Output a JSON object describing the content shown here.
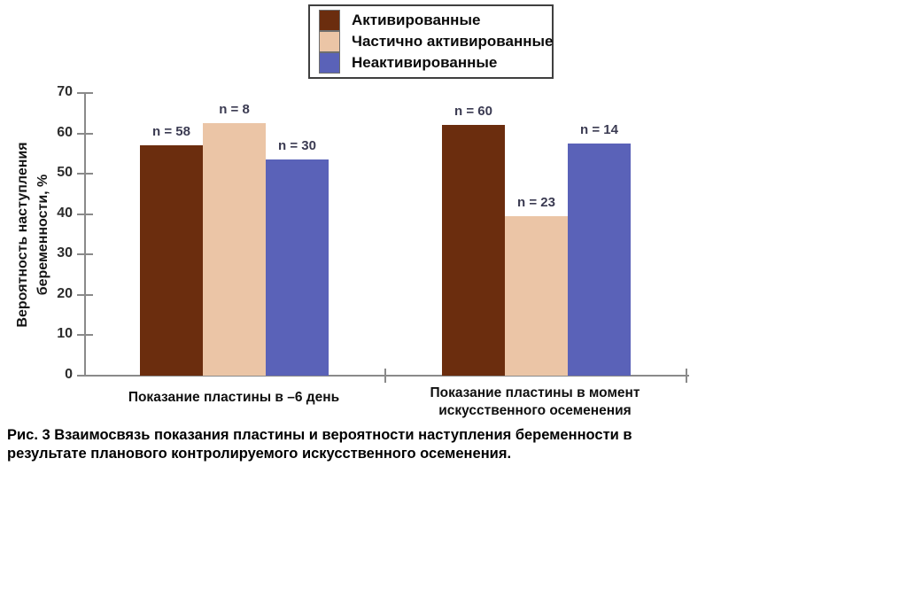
{
  "page": {
    "background": "#ffffff"
  },
  "chart_data": {
    "type": "bar",
    "title": "",
    "categories": [
      "Показание пластины в –6 день",
      "Показание пластины в момент искусственного осеменения"
    ],
    "category_label_lines": [
      [
        "Показание пластины в –6 день"
      ],
      [
        "Показание пластины в момент",
        "искусственного осеменения"
      ]
    ],
    "series": [
      {
        "name": "Активированные",
        "color": "#6B2D0E",
        "values": [
          57,
          62
        ],
        "n_labels": [
          "n = 58",
          "n = 60"
        ]
      },
      {
        "name": "Частично активированные",
        "color": "#EBC5A6",
        "values": [
          62.5,
          39.5
        ],
        "n_labels": [
          "n = 8",
          "n = 23"
        ]
      },
      {
        "name": "Неактивированные",
        "color": "#5A62B8",
        "values": [
          53.5,
          57.5
        ],
        "n_labels": [
          "n = 30",
          "n = 14"
        ]
      }
    ],
    "xlabel": "",
    "ylabel": "Вероятность наступления беременности, %",
    "ylabel_lines": [
      "Вероятность наступления",
      "беременности, %"
    ],
    "ylim": [
      0,
      70
    ],
    "ytick_step": 10,
    "grid": false,
    "legend_position": "top-center",
    "axis_color": "#8a8a8a"
  },
  "caption": {
    "line1": "Рис. 3 Взаимосвязь показания пластины и вероятности наступления беременности в",
    "line2": "результате планового контролируемого искусственного осеменения."
  }
}
